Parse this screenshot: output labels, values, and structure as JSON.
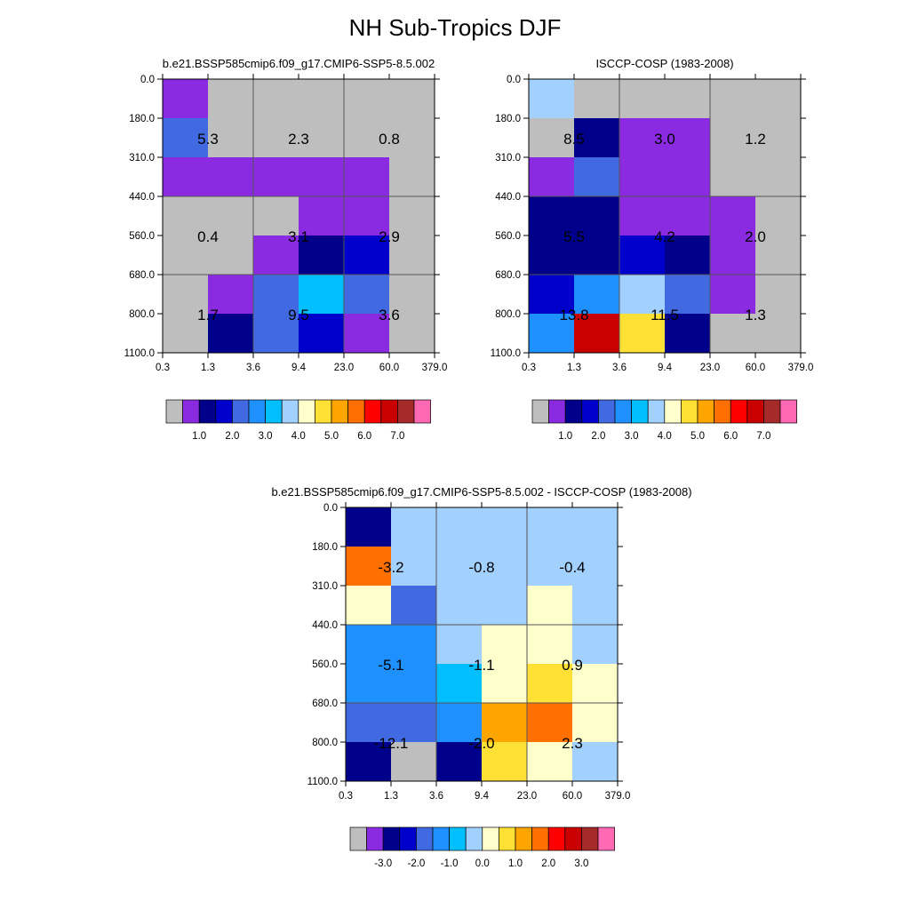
{
  "figure": {
    "title": "NH Sub-Tropics DJF",
    "colors": {
      "missing": "#bebebe",
      "abs_scale": [
        "#bebebe",
        "#8a2be2",
        "#00008b",
        "#0000cd",
        "#4169e1",
        "#1e90ff",
        "#00bfff",
        "#a2d0ff",
        "#ffffcc",
        "#ffe135",
        "#ffa500",
        "#ff7000",
        "#ff0000",
        "#c80000",
        "#a52a2a",
        "#ff69b4"
      ],
      "diff_scale": [
        "#bebebe",
        "#8a2be2",
        "#00008b",
        "#0000cd",
        "#4169e1",
        "#1e90ff",
        "#00bfff",
        "#a2d0ff",
        "#ffffcc",
        "#ffe135",
        "#ffa500",
        "#ff7000",
        "#ff0000",
        "#c80000",
        "#a52a2a",
        "#ff69b4"
      ]
    }
  },
  "chart_data": [
    {
      "type": "heatmap",
      "title": "b.e21.BSSP585cmip6.f09_g17.CMIP6-SSP5-8.5.002",
      "x_ticks": [
        "0.3",
        "1.3",
        "3.6",
        "9.4",
        "23.0",
        "60.0",
        "379.0"
      ],
      "y_ticks": [
        "0.0",
        "180.0",
        "310.0",
        "440.0",
        "560.0",
        "680.0",
        "800.0",
        "1100.0"
      ],
      "cells": [
        [
          "violet",
          "gray",
          "gray",
          "gray",
          "gray",
          "gray"
        ],
        [
          "royal",
          "gray",
          "gray",
          "gray",
          "gray",
          "gray"
        ],
        [
          "violet",
          "violet",
          "violet",
          "violet",
          "violet",
          "gray"
        ],
        [
          "gray",
          "gray",
          "gray",
          "violet",
          "violet",
          "gray"
        ],
        [
          "gray",
          "gray",
          "violet",
          "navy",
          "medblue",
          "gray"
        ],
        [
          "gray",
          "violet",
          "royal",
          "deepsky",
          "royal",
          "gray"
        ],
        [
          "gray",
          "navy",
          "royal",
          "medblue",
          "violet",
          "gray"
        ]
      ],
      "value_labels": [
        {
          "text": "5.3",
          "col": 0,
          "row": 1
        },
        {
          "text": "2.3",
          "col": 1,
          "row": 1
        },
        {
          "text": "0.8",
          "col": 2,
          "row": 1
        },
        {
          "text": "0.4",
          "col": 0,
          "row": 2
        },
        {
          "text": "3.1",
          "col": 1,
          "row": 2
        },
        {
          "text": "2.9",
          "col": 2,
          "row": 2
        },
        {
          "text": "1.7",
          "col": 0,
          "row": 3
        },
        {
          "text": "9.5",
          "col": 1,
          "row": 3
        },
        {
          "text": "3.6",
          "col": 2,
          "row": 3
        }
      ],
      "colorbar": {
        "labels": [
          "1.0",
          "2.0",
          "3.0",
          "4.0",
          "5.0",
          "6.0",
          "7.0"
        ]
      }
    },
    {
      "type": "heatmap",
      "title": "ISCCP-COSP (1983-2008)",
      "x_ticks": [
        "0.3",
        "1.3",
        "3.6",
        "9.4",
        "23.0",
        "60.0",
        "379.0"
      ],
      "y_ticks": [
        "0.0",
        "180.0",
        "310.0",
        "440.0",
        "560.0",
        "680.0",
        "800.0",
        "1100.0"
      ],
      "cells": [
        [
          "lightblue",
          "gray",
          "gray",
          "gray",
          "gray",
          "gray"
        ],
        [
          "gray",
          "navy",
          "violet",
          "violet",
          "gray",
          "gray"
        ],
        [
          "violet",
          "royal",
          "violet",
          "violet",
          "gray",
          "gray"
        ],
        [
          "navy",
          "navy",
          "violet",
          "violet",
          "violet",
          "gray"
        ],
        [
          "navy",
          "navy",
          "medblue",
          "navy",
          "violet",
          "gray"
        ],
        [
          "medblue",
          "dodger",
          "lightblue",
          "royal",
          "violet",
          "gray"
        ],
        [
          "dodger",
          "darkred",
          "yellow",
          "navy",
          "gray",
          "gray"
        ]
      ],
      "value_labels": [
        {
          "text": "8.5",
          "col": 0,
          "row": 1
        },
        {
          "text": "3.0",
          "col": 1,
          "row": 1
        },
        {
          "text": "1.2",
          "col": 2,
          "row": 1
        },
        {
          "text": "5.5",
          "col": 0,
          "row": 2
        },
        {
          "text": "4.2",
          "col": 1,
          "row": 2
        },
        {
          "text": "2.0",
          "col": 2,
          "row": 2
        },
        {
          "text": "13.8",
          "col": 0,
          "row": 3
        },
        {
          "text": "11.5",
          "col": 1,
          "row": 3
        },
        {
          "text": "1.3",
          "col": 2,
          "row": 3
        }
      ],
      "colorbar": {
        "labels": [
          "1.0",
          "2.0",
          "3.0",
          "4.0",
          "5.0",
          "6.0",
          "7.0"
        ]
      }
    },
    {
      "type": "heatmap",
      "title": "b.e21.BSSP585cmip6.f09_g17.CMIP6-SSP5-8.5.002 - ISCCP-COSP (1983-2008)",
      "x_ticks": [
        "0.3",
        "1.3",
        "3.6",
        "9.4",
        "23.0",
        "60.0",
        "379.0"
      ],
      "y_ticks": [
        "0.0",
        "180.0",
        "310.0",
        "440.0",
        "560.0",
        "680.0",
        "800.0",
        "1100.0"
      ],
      "cells": [
        [
          "navy",
          "lightblue",
          "lightblue",
          "lightblue",
          "lightblue",
          "lightblue"
        ],
        [
          "orange2",
          "lightblue",
          "lightblue",
          "lightblue",
          "lightblue",
          "lightblue"
        ],
        [
          "cream",
          "royal",
          "lightblue",
          "lightblue",
          "cream",
          "lightblue"
        ],
        [
          "dodger",
          "dodger",
          "lightblue",
          "cream",
          "cream",
          "lightblue"
        ],
        [
          "dodger",
          "dodger",
          "deepsky",
          "cream",
          "yellow",
          "cream"
        ],
        [
          "royal",
          "royal",
          "dodger",
          "orange",
          "orange2",
          "cream"
        ],
        [
          "navy",
          "gray",
          "navy",
          "yellow",
          "cream",
          "lightblue"
        ]
      ],
      "value_labels": [
        {
          "text": "-3.2",
          "col": 0,
          "row": 1
        },
        {
          "text": "-0.8",
          "col": 1,
          "row": 1
        },
        {
          "text": "-0.4",
          "col": 2,
          "row": 1
        },
        {
          "text": "-5.1",
          "col": 0,
          "row": 2
        },
        {
          "text": "-1.1",
          "col": 1,
          "row": 2
        },
        {
          "text": "0.9",
          "col": 2,
          "row": 2
        },
        {
          "text": "-12.1",
          "col": 0,
          "row": 3
        },
        {
          "text": "-2.0",
          "col": 1,
          "row": 3
        },
        {
          "text": "2.3",
          "col": 2,
          "row": 3
        }
      ],
      "colorbar": {
        "labels": [
          "-3.0",
          "-2.0",
          "-1.0",
          "0.0",
          "1.0",
          "2.0",
          "3.0"
        ]
      }
    }
  ]
}
